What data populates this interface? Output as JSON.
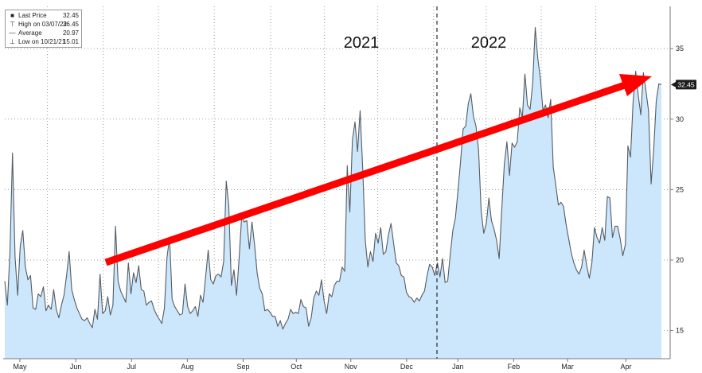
{
  "chart_data": {
    "type": "area",
    "x_ticks": [
      "May",
      "Jun",
      "Jul",
      "Aug",
      "Sep",
      "Oct",
      "Nov",
      "Dec",
      "Jan",
      "Feb",
      "Mar",
      "Apr"
    ],
    "y_ticks": [
      15,
      20,
      25,
      30,
      35
    ],
    "ylim": [
      13,
      38
    ],
    "year_labels": [
      "2021",
      "2022"
    ],
    "last_value_badge": "32.45",
    "legend": [
      {
        "symbol": "square-icon",
        "label": "Last Price",
        "value": "32.45"
      },
      {
        "symbol": "high-marker-icon",
        "label": "High on 03/07/22",
        "value": "36.45"
      },
      {
        "symbol": "average-line-icon",
        "label": "Average",
        "value": "20.97"
      },
      {
        "symbol": "low-marker-icon",
        "label": "Low on 10/21/21",
        "value": "15.01"
      }
    ],
    "series": [
      {
        "values": [
          18.5,
          16.8,
          20.5,
          27.6,
          20.2,
          17.5,
          21.0,
          22.1,
          19.5,
          18.6,
          18.9,
          16.6,
          16.5,
          17.6,
          17.4,
          18.1,
          16.4,
          16.8,
          16.5,
          17.9,
          16.5,
          15.9,
          16.8,
          17.5,
          18.9,
          20.6,
          17.9,
          17.2,
          16.6,
          16.2,
          15.8,
          15.7,
          15.9,
          15.5,
          15.2,
          16.5,
          15.8,
          19.0,
          16.2,
          16.4,
          17.4,
          16.1,
          16.8,
          22.4,
          18.5,
          17.8,
          17.4,
          17.0,
          19.8,
          17.6,
          19.1,
          18.4,
          19.6,
          17.9,
          17.8,
          16.8,
          17.0,
          17.1,
          16.5,
          16.1,
          15.8,
          15.5,
          16.6,
          20.2,
          21.6,
          17.2,
          16.7,
          16.4,
          16.1,
          16.2,
          18.3,
          16.7,
          16.2,
          16.4,
          16.7,
          16.0,
          17.5,
          17.0,
          18.8,
          20.7,
          18.6,
          18.3,
          18.9,
          19.0,
          18.8,
          19.9,
          25.6,
          23.8,
          18.2,
          19.3,
          17.5,
          20.1,
          23.1,
          22.7,
          22.8,
          20.8,
          22.7,
          21.1,
          19.1,
          18.0,
          17.6,
          16.4,
          16.5,
          16.3,
          16.0,
          16.0,
          15.3,
          15.7,
          15.1,
          15.5,
          15.8,
          16.5,
          16.2,
          16.3,
          16.2,
          17.2,
          16.7,
          16.6,
          15.3,
          15.9,
          17.3,
          17.8,
          17.5,
          18.6,
          17.1,
          16.2,
          17.6,
          17.4,
          18.2,
          18.5,
          18.5,
          19.5,
          19.2,
          26.7,
          23.4,
          28.5,
          29.8,
          27.7,
          30.6,
          26.5,
          21.4,
          19.5,
          20.6,
          19.9,
          21.9,
          21.2,
          22.3,
          20.4,
          20.6,
          21.8,
          22.6,
          21.2,
          19.8,
          19.6,
          18.9,
          18.8,
          17.7,
          17.4,
          17.3,
          17.0,
          17.3,
          17.1,
          17.5,
          17.8,
          18.9,
          19.7,
          19.5,
          18.9,
          19.8,
          18.8,
          20.1,
          18.4,
          18.5,
          20.4,
          22.1,
          23.0,
          24.9,
          27.0,
          29.3,
          29.5,
          31.1,
          31.8,
          30.2,
          29.5,
          27.8,
          23.5,
          21.9,
          22.6,
          24.4,
          22.8,
          22.2,
          21.4,
          20.1,
          23.6,
          26.8,
          28.4,
          26.0,
          28.3,
          28.0,
          28.4,
          30.8,
          30.1,
          33.2,
          31.0,
          30.7,
          32.5,
          36.5,
          34.3,
          32.9,
          30.6,
          31.0,
          30.1,
          31.4,
          26.6,
          25.3,
          23.9,
          24.1,
          23.8,
          22.5,
          21.5,
          20.5,
          19.8,
          19.3,
          19.0,
          19.5,
          20.7,
          19.6,
          18.7,
          19.8,
          22.3,
          21.6,
          21.2,
          22.3,
          21.4,
          24.5,
          24.4,
          21.6,
          22.4,
          22.4,
          21.5,
          20.3,
          21.1,
          28.1,
          27.3,
          31.2,
          33.4,
          31.7,
          30.3,
          33.3,
          32.0,
          30.6,
          25.4,
          27.8,
          31.3,
          32.5,
          32.45
        ]
      }
    ]
  }
}
